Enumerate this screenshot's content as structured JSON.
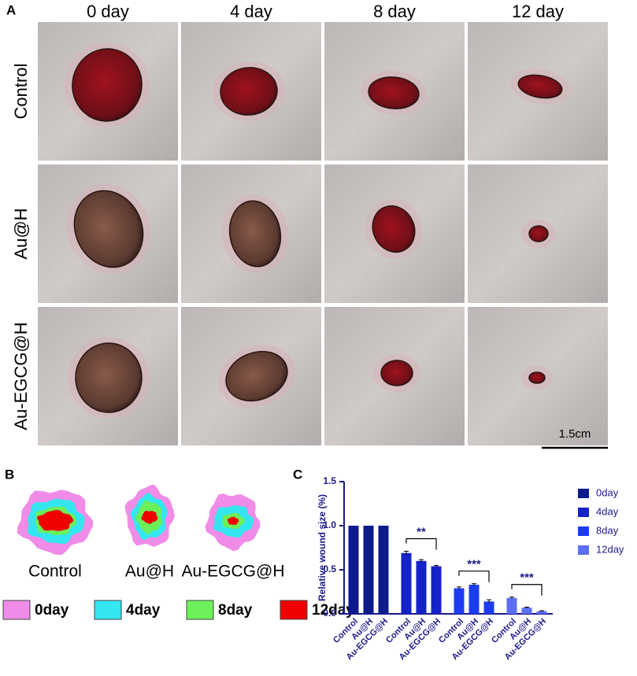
{
  "panel_a": {
    "label": "A",
    "columns": [
      "0 day",
      "4 day",
      "8 day",
      "12 day"
    ],
    "rows": [
      "Control",
      "Au@H",
      "Au-EGCG@H"
    ],
    "scale_bar": "1.5cm"
  },
  "panel_b": {
    "label": "B",
    "groups": [
      "Control",
      "Au@H",
      "Au-EGCG@H"
    ],
    "legend": [
      {
        "name": "0day",
        "color": "#f08ce8"
      },
      {
        "name": "4day",
        "color": "#33e6f0"
      },
      {
        "name": "8day",
        "color": "#6cf05a"
      },
      {
        "name": "12day",
        "color": "#f00000"
      }
    ]
  },
  "chart_data": {
    "type": "bar",
    "panel_label": "C",
    "ylabel": "Relative wound size (%)",
    "categories": [
      "Control",
      "Au@H",
      "Au-EGCG@H"
    ],
    "series": [
      {
        "name": "0day",
        "color": "#0c1a8c",
        "values": [
          1.0,
          1.0,
          1.0
        ],
        "errors": [
          0,
          0,
          0
        ]
      },
      {
        "name": "4day",
        "color": "#1422c8",
        "values": [
          0.69,
          0.6,
          0.54
        ],
        "errors": [
          0.02,
          0.015,
          0.01
        ],
        "significance": "**"
      },
      {
        "name": "8day",
        "color": "#1c3cf2",
        "values": [
          0.29,
          0.33,
          0.14
        ],
        "errors": [
          0.015,
          0.012,
          0.02
        ],
        "significance": "***"
      },
      {
        "name": "12day",
        "color": "#5c6ef4",
        "values": [
          0.18,
          0.07,
          0.03
        ],
        "errors": [
          0.01,
          0.006,
          0.005
        ],
        "significance": "***"
      }
    ],
    "ylim": [
      0,
      1.5
    ],
    "yticks": [
      {
        "value": 0,
        "label": "0.0"
      },
      0.5,
      {
        "value": 1,
        "label": "1.0"
      },
      1.5
    ]
  }
}
